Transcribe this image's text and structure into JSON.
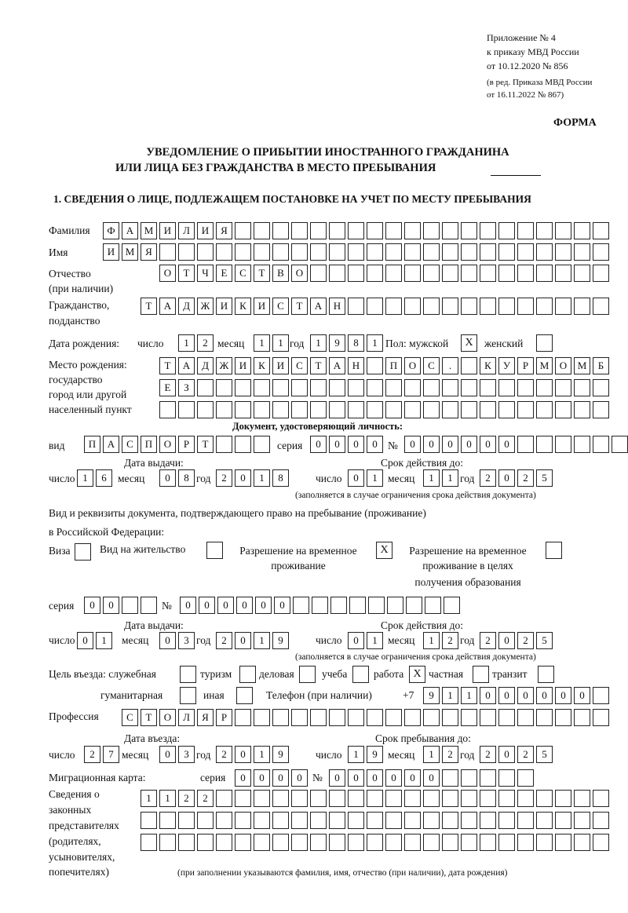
{
  "header": {
    "appendix": [
      "Приложение № 4",
      "к приказу МВД России",
      "от 10.12.2020 № 856"
    ],
    "amended": [
      "(в ред. Приказа МВД России",
      "от 16.11.2022 № 867)"
    ],
    "form_label": "ФОРМА",
    "title_line1": "УВЕДОМЛЕНИЕ О ПРИБЫТИИ ИНОСТРАННОГО ГРАЖДАНИНА",
    "title_line2": "ИЛИ ЛИЦА БЕЗ ГРАЖДАНСТВА В МЕСТО ПРЕБЫВАНИЯ",
    "section1": "1. СВЕДЕНИЯ О ЛИЦЕ, ПОДЛЕЖАЩЕМ ПОСТАНОВКЕ НА УЧЕТ ПО МЕСТУ ПРЕБЫВАНИЯ"
  },
  "labels": {
    "surname": "Фамилия",
    "name": "Имя",
    "patronymic1": "Отчество",
    "patronymic2": "(при наличии)",
    "citizenship1": "Гражданство,",
    "citizenship2": "подданство",
    "birth_date": "Дата рождения:",
    "day": "число",
    "month": "месяц",
    "year": "год",
    "sex": "Пол: мужской",
    "female": "женский",
    "birth_place1": "Место рождения:",
    "birth_place2": "государство",
    "birth_place3": "город или другой",
    "birth_place4": "населенный пункт",
    "id_doc": "Документ, удостоверяющий личность:",
    "kind": "вид",
    "series": "серия",
    "number": "№",
    "issue_date": "Дата выдачи:",
    "valid_until": "Срок действия до:",
    "validity_note": "(заполняется в случае ограничения срока действия документа)",
    "permit_doc1": "Вид и реквизиты документа, подтверждающего право на пребывание (проживание)",
    "permit_doc2": "в Российской Федерации:",
    "visa": "Виза",
    "residence": "Вид на жительство",
    "temp_residence1": "Разрешение на временное",
    "temp_residence2": "проживание",
    "temp_edu1": "Разрешение на временное",
    "temp_edu2": "проживание в целях",
    "temp_edu3": "получения образования",
    "purpose": "Цель въезда: служебная",
    "tourism": "туризм",
    "business": "деловая",
    "study": "учеба",
    "work": "работа",
    "private": "частная",
    "transit": "транзит",
    "humanitarian": "гуманитарная",
    "other": "иная",
    "phone": "Телефон (при наличии)",
    "phone_prefix": "+7",
    "profession": "Профессия",
    "entry_date": "Дата въезда:",
    "stay_until": "Срок пребывания до:",
    "migration_card": "Миграционная карта:",
    "reps1": "Сведения о",
    "reps2": "законных",
    "reps3": "представителях",
    "reps4": "(родителях,",
    "reps5": "усыновителях,",
    "reps6": "попечителях)",
    "reps_note": "(при заполнении указываются фамилия, имя, отчество (при наличии), дата рождения)"
  },
  "fields": {
    "surname": [
      "Ф",
      "А",
      "М",
      "И",
      "Л",
      "И",
      "Я",
      "",
      "",
      "",
      "",
      "",
      "",
      "",
      "",
      "",
      "",
      "",
      "",
      "",
      "",
      "",
      "",
      "",
      "",
      "",
      ""
    ],
    "name": [
      "И",
      "М",
      "Я",
      "",
      "",
      "",
      "",
      "",
      "",
      "",
      "",
      "",
      "",
      "",
      "",
      "",
      "",
      "",
      "",
      "",
      "",
      "",
      "",
      "",
      "",
      "",
      ""
    ],
    "patronymic": [
      "О",
      "Т",
      "Ч",
      "Е",
      "С",
      "Т",
      "В",
      "О",
      "",
      "",
      "",
      "",
      "",
      "",
      "",
      "",
      "",
      "",
      "",
      "",
      "",
      "",
      "",
      ""
    ],
    "citizenship": [
      "Т",
      "А",
      "Д",
      "Ж",
      "И",
      "К",
      "И",
      "С",
      "Т",
      "А",
      "Н",
      "",
      "",
      "",
      "",
      "",
      "",
      "",
      "",
      "",
      "",
      "",
      "",
      "",
      ""
    ],
    "birth_day": [
      "1",
      "2"
    ],
    "birth_month": [
      "1",
      "1"
    ],
    "birth_year": [
      "1",
      "9",
      "8",
      "1"
    ],
    "sex_male": "X",
    "sex_female": "",
    "birth_place_1": [
      "Т",
      "А",
      "Д",
      "Ж",
      "И",
      "К",
      "И",
      "С",
      "Т",
      "А",
      "Н",
      "",
      "П",
      "О",
      "С",
      ".",
      "",
      "К",
      "У",
      "Р",
      "М",
      "О",
      "М",
      "Б"
    ],
    "birth_place_2": [
      "Е",
      "З",
      "",
      "",
      "",
      "",
      "",
      "",
      "",
      "",
      "",
      "",
      "",
      "",
      "",
      "",
      "",
      "",
      "",
      "",
      "",
      "",
      "",
      ""
    ],
    "birth_place_3": [
      "",
      "",
      "",
      "",
      "",
      "",
      "",
      "",
      "",
      "",
      "",
      "",
      "",
      "",
      "",
      "",
      "",
      "",
      "",
      "",
      "",
      "",
      "",
      ""
    ],
    "id_kind": [
      "П",
      "А",
      "С",
      "П",
      "О",
      "Р",
      "Т",
      "",
      "",
      ""
    ],
    "id_series": [
      "0",
      "0",
      "0",
      "0"
    ],
    "id_number": [
      "0",
      "0",
      "0",
      "0",
      "0",
      "0",
      "",
      "",
      "",
      "",
      "",
      ""
    ],
    "id_issue_day": [
      "1",
      "6"
    ],
    "id_issue_month": [
      "0",
      "8"
    ],
    "id_issue_year": [
      "2",
      "0",
      "1",
      "8"
    ],
    "id_valid_day": [
      "0",
      "1"
    ],
    "id_valid_month": [
      "1",
      "1"
    ],
    "id_valid_year": [
      "2",
      "0",
      "2",
      "5"
    ],
    "visa": "",
    "residence_permit": "",
    "temp_residence": "X",
    "temp_residence_edu": "",
    "permit_series": [
      "0",
      "0",
      "",
      ""
    ],
    "permit_number": [
      "0",
      "0",
      "0",
      "0",
      "0",
      "0",
      "",
      "",
      "",
      "",
      "",
      "",
      "",
      "",
      ""
    ],
    "permit_issue_day": [
      "0",
      "1"
    ],
    "permit_issue_month": [
      "0",
      "3"
    ],
    "permit_issue_year": [
      "2",
      "0",
      "1",
      "9"
    ],
    "permit_valid_day": [
      "0",
      "1"
    ],
    "permit_valid_month": [
      "1",
      "2"
    ],
    "permit_valid_year": [
      "2",
      "0",
      "2",
      "5"
    ],
    "purpose_official": "",
    "purpose_tourism": "",
    "purpose_business": "",
    "purpose_study": "",
    "purpose_work": "X",
    "purpose_private": "",
    "purpose_transit": "",
    "purpose_humanitarian": "",
    "purpose_other": "",
    "phone": [
      "9",
      "1",
      "1",
      "0",
      "0",
      "0",
      "0",
      "0",
      "0",
      ""
    ],
    "profession": [
      "С",
      "Т",
      "О",
      "Л",
      "Я",
      "Р",
      "",
      "",
      "",
      "",
      "",
      "",
      "",
      "",
      "",
      "",
      "",
      "",
      "",
      "",
      "",
      "",
      "",
      "",
      "",
      ""
    ],
    "entry_day": [
      "2",
      "7"
    ],
    "entry_month": [
      "0",
      "3"
    ],
    "entry_year": [
      "2",
      "0",
      "1",
      "9"
    ],
    "stay_day": [
      "1",
      "9"
    ],
    "stay_month": [
      "1",
      "2"
    ],
    "stay_year": [
      "2",
      "0",
      "2",
      "5"
    ],
    "mc_series": [
      "0",
      "0",
      "0",
      "0"
    ],
    "mc_number": [
      "0",
      "0",
      "0",
      "0",
      "0",
      "0",
      "",
      "",
      "",
      "",
      ""
    ],
    "reps_1": [
      "1",
      "1",
      "2",
      "2",
      "",
      "",
      "",
      "",
      "",
      "",
      "",
      "",
      "",
      "",
      "",
      "",
      "",
      "",
      "",
      "",
      "",
      "",
      "",
      "",
      ""
    ],
    "reps_2": [
      "",
      "",
      "",
      "",
      "",
      "",
      "",
      "",
      "",
      "",
      "",
      "",
      "",
      "",
      "",
      "",
      "",
      "",
      "",
      "",
      "",
      "",
      "",
      "",
      ""
    ],
    "reps_3": [
      "",
      "",
      "",
      "",
      "",
      "",
      "",
      "",
      "",
      "",
      "",
      "",
      "",
      "",
      "",
      "",
      "",
      "",
      "",
      "",
      "",
      "",
      "",
      "",
      ""
    ]
  }
}
